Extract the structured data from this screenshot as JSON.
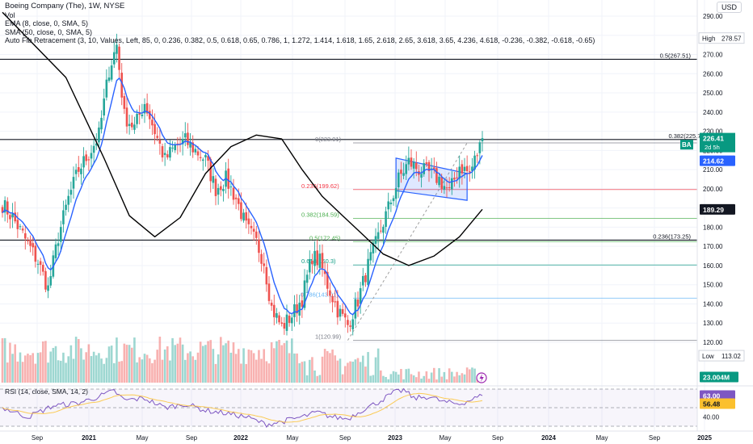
{
  "legend": {
    "title": "Boeing Company (The), 1W, NYSE",
    "vol": "Vol",
    "ema": "EMA (8, close, 0, SMA, 5)",
    "sma": "SMA (50, close, 0, SMA, 5)",
    "fib": "Auto Fib Retracement (3, 10, Values, Left, 85, 0, 0.236, 0.382, 0.5, 0.618, 0.65, 0.786, 1, 1.272, 1.414, 1.618, 1.65, 2.618, 2.65, 3.618, 3.65, 4.236, 4.618, -0.236, -0.382, -0.618, -0.65)"
  },
  "currency": "USD",
  "rsi_legend": "RSI (14, close, SMA, 14, 2)",
  "colors": {
    "up": "#26a69a",
    "down": "#ef5350",
    "ema": "#2962ff",
    "sma": "#000000",
    "rsi": "#7e57c2",
    "rsi_ma": "#fbc02d",
    "badge_green": "#089981",
    "badge_blue": "#2962ff",
    "volume_badge": "#089981",
    "channel_fill": "#2962ff"
  },
  "chart_data": [
    {
      "type": "candlestick",
      "title": "Boeing Company (The), 1W, NYSE",
      "ylim": [
        110,
        292
      ],
      "y_ticks": [
        290,
        280,
        270,
        260,
        250,
        240,
        230,
        220,
        210,
        200,
        190,
        180,
        170,
        160,
        150,
        140,
        130,
        120
      ],
      "x_ticks": [
        "Sep",
        "2021",
        "May",
        "Sep",
        "2022",
        "May",
        "Sep",
        "2023",
        "May",
        "Sep",
        "2024",
        "May",
        "Sep",
        "2025"
      ],
      "grid": true,
      "anchors": [
        [
          0,
          192
        ],
        [
          4,
          185
        ],
        [
          8,
          176
        ],
        [
          14,
          162
        ],
        [
          18,
          148
        ],
        [
          22,
          175
        ],
        [
          26,
          195
        ],
        [
          30,
          210
        ],
        [
          34,
          218
        ],
        [
          38,
          228
        ],
        [
          42,
          262
        ],
        [
          45,
          275
        ],
        [
          48,
          238
        ],
        [
          52,
          232
        ],
        [
          56,
          245
        ],
        [
          60,
          230
        ],
        [
          64,
          215
        ],
        [
          68,
          222
        ],
        [
          72,
          225
        ],
        [
          76,
          220
        ],
        [
          80,
          215
        ],
        [
          84,
          200
        ],
        [
          88,
          205
        ],
        [
          92,
          195
        ],
        [
          96,
          180
        ],
        [
          100,
          172
        ],
        [
          103,
          162
        ],
        [
          106,
          138
        ],
        [
          110,
          128
        ],
        [
          114,
          134
        ],
        [
          118,
          143
        ],
        [
          122,
          165
        ],
        [
          125,
          162
        ],
        [
          128,
          150
        ],
        [
          132,
          137
        ],
        [
          136,
          129
        ],
        [
          140,
          142
        ],
        [
          144,
          160
        ],
        [
          148,
          175
        ],
        [
          152,
          190
        ],
        [
          156,
          205
        ],
        [
          160,
          214
        ],
        [
          164,
          210
        ],
        [
          168,
          208
        ],
        [
          172,
          205
        ],
        [
          176,
          198
        ],
        [
          180,
          212
        ],
        [
          184,
          208
        ],
        [
          188,
          222
        ],
        [
          189,
          226.41
        ]
      ],
      "fib_levels": [
        {
          "label": "0.5(267.51)",
          "value": 267.51,
          "color": "#131722"
        },
        {
          "label": "0.382(225.7)",
          "value": 225.7,
          "color": "#131722"
        },
        {
          "label": "0.236(173.25)",
          "value": 173.25,
          "color": "#131722"
        },
        {
          "label": "0(223.91)",
          "value": 223.91,
          "color": "#787b86"
        },
        {
          "label": "0.236(199.62)",
          "value": 199.62,
          "color": "#f23645"
        },
        {
          "label": "0.382(184.59)",
          "value": 184.59,
          "color": "#4caf50"
        },
        {
          "label": "0.5(172.45)",
          "value": 172.45,
          "color": "#4caf50"
        },
        {
          "label": "0.618(160.3)",
          "value": 160.3,
          "color": "#089981"
        },
        {
          "label": "0.786(143.01)",
          "value": 143.01,
          "color": "#64b5f6"
        },
        {
          "label": "1(120.99)",
          "value": 120.99,
          "color": "#787b86"
        }
      ],
      "channel": {
        "upper": [
          [
            155,
            216
          ],
          [
            183,
            208
          ]
        ],
        "lower": [
          [
            155,
            199
          ],
          [
            183,
            194
          ]
        ]
      },
      "price_badges": [
        {
          "label": "BA",
          "price": "226.41",
          "extra": "2d 5h",
          "color": "#089981"
        },
        {
          "price": "214.62",
          "color": "#2962ff"
        },
        {
          "price": "189.29",
          "color": "#131722"
        },
        {
          "price": "23.004M",
          "color": "#089981"
        }
      ],
      "high": {
        "label": "High",
        "value": "278.57"
      },
      "low": {
        "label": "Low",
        "value": "113.02"
      }
    },
    {
      "type": "line",
      "title": "RSI (14, close, SMA, 14, 2)",
      "ylim": [
        30,
        70
      ],
      "y_ticks": [
        40
      ],
      "badges": [
        {
          "value": "63.00",
          "color": "#7e57c2"
        },
        {
          "value": "56.48",
          "color": "#fbc02d"
        }
      ],
      "rsi_anchors": [
        [
          0,
          50
        ],
        [
          10,
          40
        ],
        [
          20,
          52
        ],
        [
          30,
          55
        ],
        [
          38,
          62
        ],
        [
          44,
          68
        ],
        [
          48,
          58
        ],
        [
          56,
          60
        ],
        [
          64,
          50
        ],
        [
          72,
          54
        ],
        [
          80,
          47
        ],
        [
          88,
          44
        ],
        [
          96,
          40
        ],
        [
          100,
          36
        ],
        [
          104,
          32
        ],
        [
          110,
          35
        ],
        [
          118,
          40
        ],
        [
          124,
          45
        ],
        [
          130,
          40
        ],
        [
          136,
          38
        ],
        [
          142,
          48
        ],
        [
          148,
          56
        ],
        [
          154,
          66
        ],
        [
          158,
          69
        ],
        [
          162,
          60
        ],
        [
          168,
          62
        ],
        [
          174,
          56
        ],
        [
          180,
          54
        ],
        [
          184,
          58
        ],
        [
          189,
          63
        ]
      ]
    }
  ]
}
